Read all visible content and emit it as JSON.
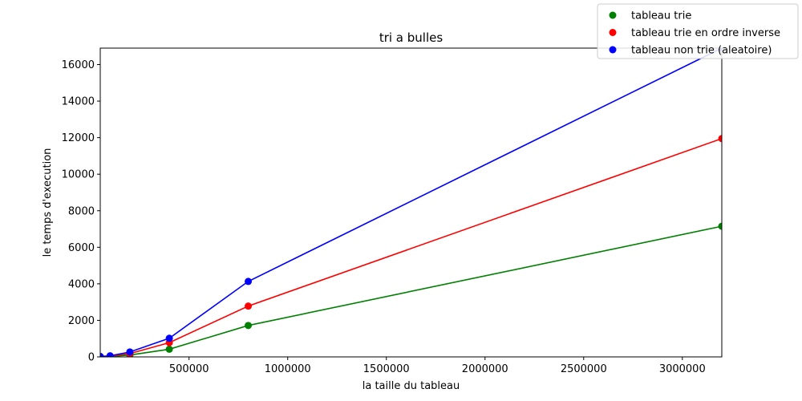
{
  "chart_data": {
    "type": "line",
    "title": "tri a bulles",
    "xlabel": "la taille du tableau",
    "ylabel": "le temps d'execution",
    "xlim": [
      50000,
      3200000
    ],
    "ylim": [
      0,
      16900
    ],
    "xticks": [
      500000,
      1000000,
      1500000,
      2000000,
      2500000,
      3000000
    ],
    "yticks": [
      0,
      2000,
      4000,
      6000,
      8000,
      10000,
      12000,
      14000,
      16000
    ],
    "grid": false,
    "legend_position": "top-right",
    "x": [
      50000,
      100000,
      200000,
      400000,
      800000,
      3200000
    ],
    "series": [
      {
        "name": "tableau trie",
        "color": "#008000",
        "values": [
          10,
          25,
          100,
          420,
          1720,
          7150
        ]
      },
      {
        "name": "tableau trie en ordre inverse",
        "color": "#ff0000",
        "values": [
          15,
          45,
          180,
          780,
          2780,
          11950
        ]
      },
      {
        "name": "tableau non trie (aleatoire)",
        "color": "#0000ff",
        "values": [
          20,
          60,
          270,
          1020,
          4130,
          16900
        ]
      }
    ]
  }
}
